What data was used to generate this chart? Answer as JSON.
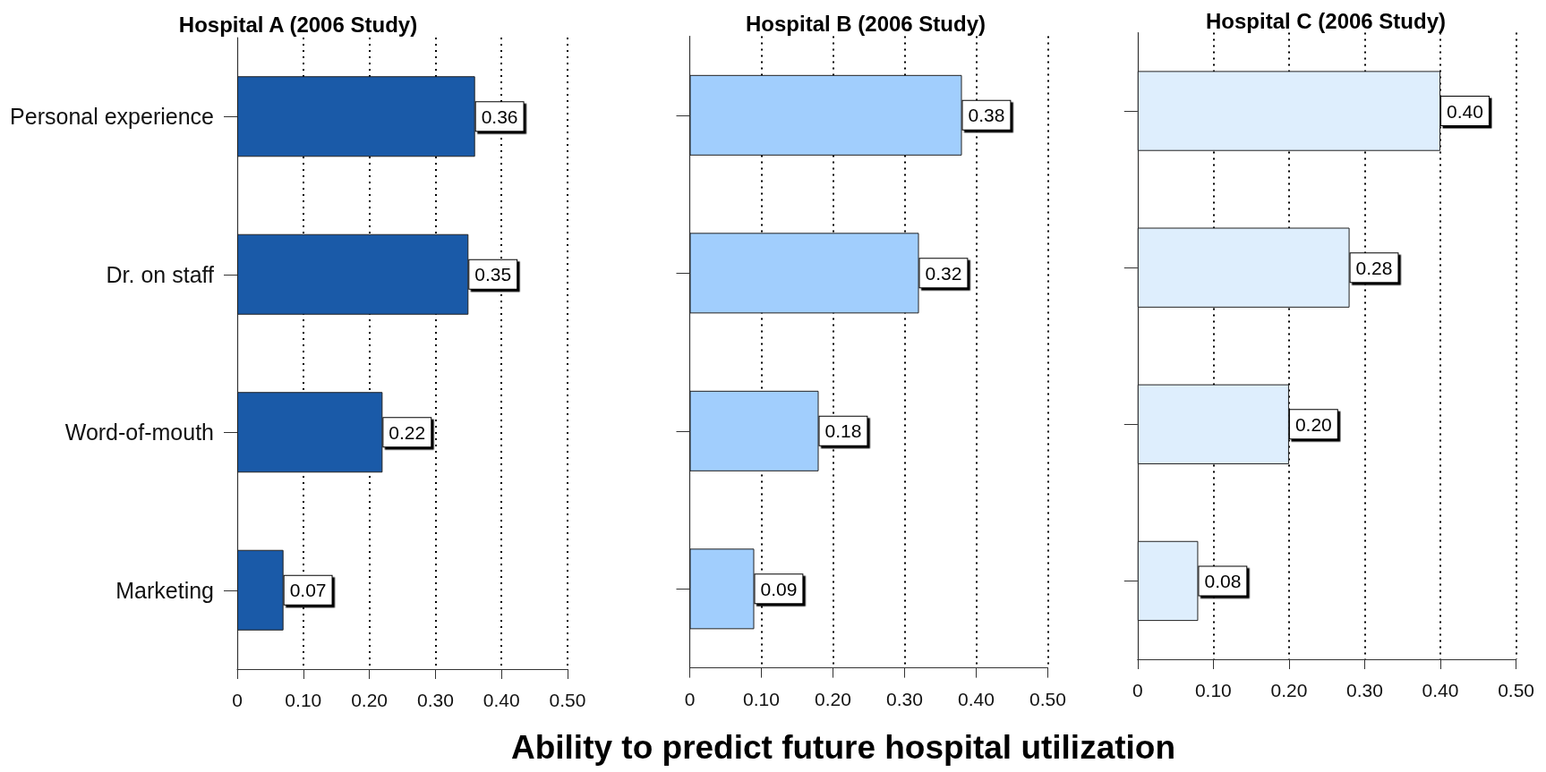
{
  "chart_data": [
    {
      "type": "bar",
      "orientation": "horizontal",
      "title": "Hospital A (2006 Study)",
      "categories": [
        "Personal experience",
        "Dr. on staff",
        "Word-of-mouth",
        "Marketing"
      ],
      "values": [
        0.36,
        0.35,
        0.22,
        0.07
      ],
      "value_labels": [
        "0.36",
        "0.35",
        "0.22",
        "0.07"
      ],
      "color": "#1a5aa8",
      "xlim": [
        0,
        0.5
      ],
      "xticks": [
        {
          "value": 0,
          "label": "0"
        },
        {
          "value": 0.1,
          "label": "0.10"
        },
        {
          "value": 0.2,
          "label": "0.20"
        },
        {
          "value": 0.3,
          "label": "0.30"
        },
        {
          "value": 0.4,
          "label": "0.40"
        },
        {
          "value": 0.5,
          "label": "0.50"
        }
      ],
      "grid": "x"
    },
    {
      "type": "bar",
      "orientation": "horizontal",
      "title": "Hospital B (2006 Study)",
      "xlabel": "Ability to predict future hospital utilization",
      "categories": [
        null,
        null,
        null,
        null
      ],
      "values": [
        0.38,
        0.32,
        0.18,
        0.09
      ],
      "value_labels": [
        "0.38",
        "0.32",
        "0.18",
        "0.09"
      ],
      "color": "#a1cefd",
      "xlim": [
        0,
        0.5
      ],
      "xticks": [
        {
          "value": 0,
          "label": "0"
        },
        {
          "value": 0.1,
          "label": "0.10"
        },
        {
          "value": 0.2,
          "label": "0.20"
        },
        {
          "value": 0.3,
          "label": "0.30"
        },
        {
          "value": 0.4,
          "label": "0.40"
        },
        {
          "value": 0.5,
          "label": "0.50"
        }
      ],
      "grid": "x"
    },
    {
      "type": "bar",
      "orientation": "horizontal",
      "title": "Hospital C (2006 Study)",
      "categories": [
        null,
        null,
        null,
        null
      ],
      "values": [
        0.4,
        0.28,
        0.2,
        0.08
      ],
      "value_labels": [
        "0.40",
        "0.28",
        "0.20",
        "0.08"
      ],
      "color": "#deeefd",
      "xlim": [
        0,
        0.5
      ],
      "xticks": [
        {
          "value": 0,
          "label": "0"
        },
        {
          "value": 0.1,
          "label": "0.10"
        },
        {
          "value": 0.2,
          "label": "0.20"
        },
        {
          "value": 0.3,
          "label": "0.30"
        },
        {
          "value": 0.4,
          "label": "0.40"
        },
        {
          "value": 0.5,
          "label": "0.50"
        }
      ],
      "grid": "x"
    }
  ]
}
